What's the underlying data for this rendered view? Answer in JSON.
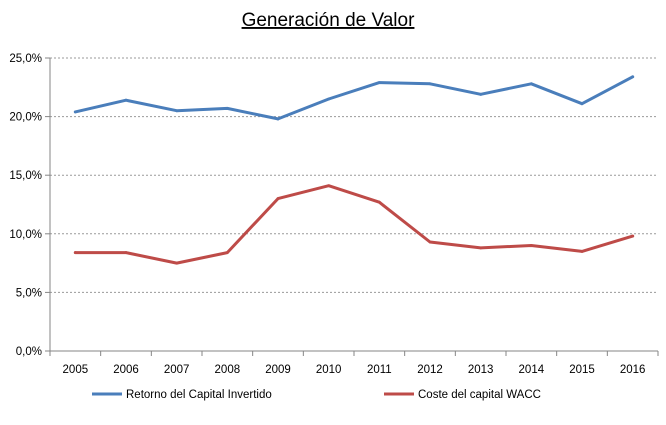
{
  "chart_data": {
    "type": "line",
    "title": "Generación de Valor",
    "xlabel": "",
    "ylabel": "",
    "categories": [
      "2005",
      "2006",
      "2007",
      "2008",
      "2009",
      "2010",
      "2011",
      "2012",
      "2013",
      "2014",
      "2015",
      "2016"
    ],
    "y_ticks": [
      "0,0%",
      "5,0%",
      "10,0%",
      "15,0%",
      "20,0%",
      "25,0%"
    ],
    "ylim": [
      0,
      25
    ],
    "grid": "horizontal dashed",
    "legend_position": "bottom",
    "series": [
      {
        "name": "Retorno del Capital Invertido",
        "color": "#4a7ebb",
        "values": [
          20.4,
          21.4,
          20.5,
          20.7,
          19.8,
          21.5,
          22.9,
          22.8,
          21.9,
          22.8,
          21.1,
          23.4
        ]
      },
      {
        "name": "Coste del capital WACC",
        "color": "#be4b48",
        "values": [
          8.4,
          8.4,
          7.5,
          8.4,
          13.0,
          14.1,
          12.7,
          9.3,
          8.8,
          9.0,
          8.5,
          9.8
        ]
      }
    ]
  }
}
